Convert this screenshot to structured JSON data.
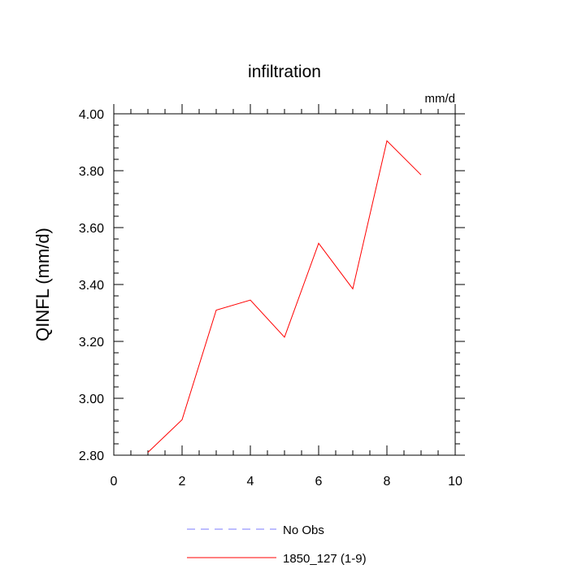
{
  "chart_data": {
    "type": "line",
    "title": "infiltration",
    "units_label": "mm/d",
    "xlabel": "",
    "ylabel": "QINFL  (mm/d)",
    "xlim": [
      0,
      10
    ],
    "ylim": [
      2.8,
      4.0
    ],
    "x_ticks": [
      "0",
      "2",
      "4",
      "6",
      "8",
      "10"
    ],
    "y_ticks": [
      "2.80",
      "3.00",
      "3.20",
      "3.40",
      "3.60",
      "3.80",
      "4.00"
    ],
    "grid": false,
    "legend_placement": "bottom",
    "legend": [
      {
        "label": "No Obs",
        "style": "dashed",
        "color": "#7b7bff"
      },
      {
        "label": "1850_127 (1-9)",
        "style": "solid",
        "color": "#ff0000"
      }
    ],
    "series": [
      {
        "name": "1850_127 (1-9)",
        "color": "#ff0000",
        "x": [
          1,
          2,
          3,
          4,
          5,
          6,
          7,
          8,
          9
        ],
        "y": [
          2.81,
          2.925,
          3.31,
          3.345,
          3.215,
          3.545,
          3.385,
          3.905,
          3.785
        ]
      }
    ]
  }
}
